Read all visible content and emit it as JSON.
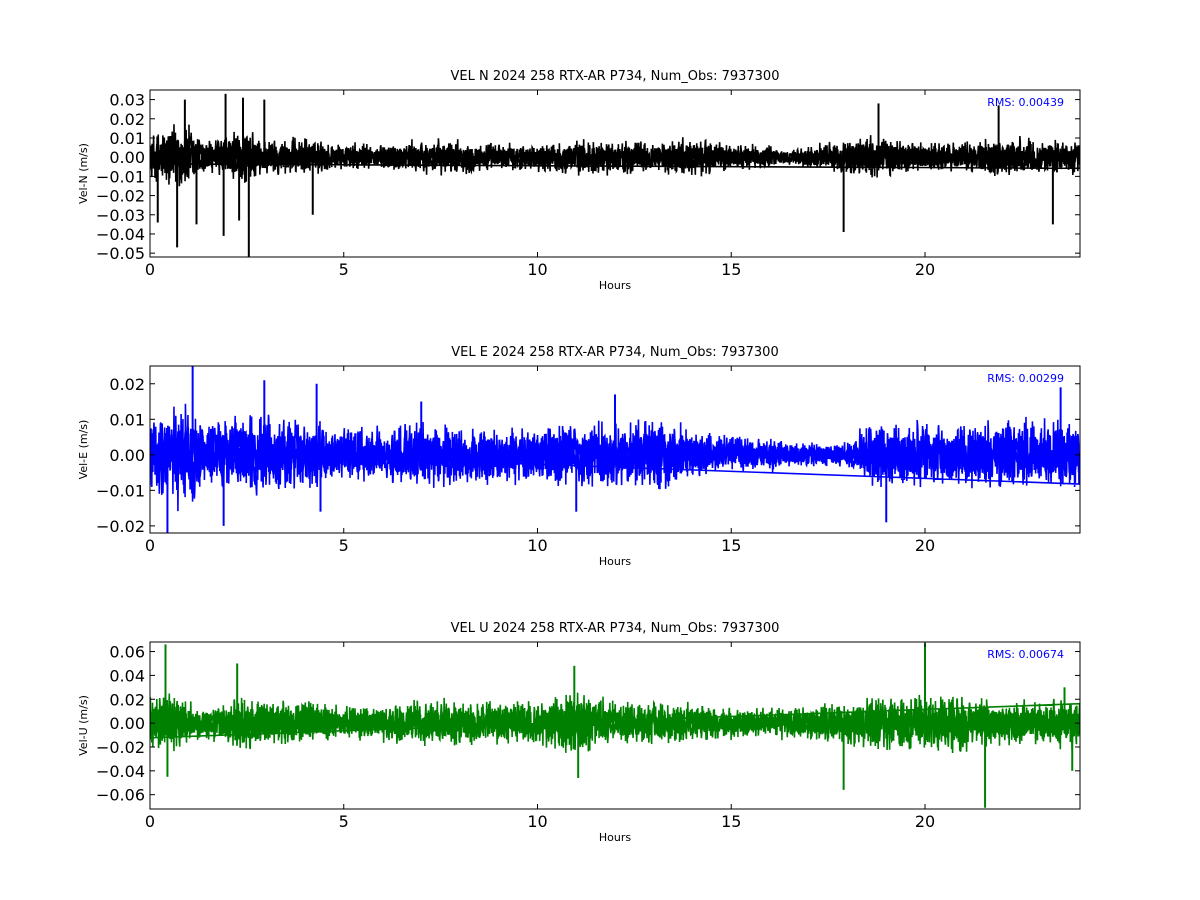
{
  "chart_data": [
    {
      "type": "line",
      "title": "VEL N 2024 258 RTX-AR  P734, Num_Obs: 7937300",
      "xlabel": "Hours",
      "ylabel": "Vel-N (m/s)",
      "xlim": [
        0,
        24
      ],
      "ylim": [
        -0.052,
        0.035
      ],
      "x_ticks": [
        0,
        5,
        10,
        15,
        20
      ],
      "x_tick_labels": [
        "0",
        "5",
        "10",
        "15",
        "20"
      ],
      "y_ticks": [
        0.03,
        0.02,
        0.01,
        0.0,
        -0.01,
        -0.02,
        -0.03,
        -0.04,
        -0.05
      ],
      "y_tick_labels": [
        "0.03",
        "0.02",
        "0.01",
        "0.00",
        "−0.01",
        "−0.02",
        "−0.03",
        "−0.04",
        "−0.05"
      ],
      "series_color": "#000000",
      "annotation": "RMS:  0.00439",
      "annotation_color": "#0000ff",
      "envelope": {
        "x": [
          0,
          0.5,
          1.0,
          1.5,
          2.0,
          2.5,
          3.0,
          4.0,
          5.0,
          6.0,
          7.0,
          8.0,
          9.0,
          10.0,
          11.0,
          12.0,
          13.0,
          14.0,
          14.5,
          15.0,
          16.0,
          16.5,
          17.0,
          18.0,
          18.5,
          19.0,
          20.0,
          21.0,
          22.0,
          23.0,
          24.0
        ],
        "half_amplitude": [
          0.012,
          0.02,
          0.02,
          0.01,
          0.014,
          0.016,
          0.011,
          0.011,
          0.008,
          0.008,
          0.01,
          0.01,
          0.008,
          0.008,
          0.01,
          0.01,
          0.009,
          0.012,
          0.01,
          0.008,
          0.007,
          0.004,
          0.007,
          0.01,
          0.014,
          0.011,
          0.009,
          0.009,
          0.012,
          0.01,
          0.01
        ]
      },
      "spikes": [
        {
          "x": 0.2,
          "y": -0.034
        },
        {
          "x": 0.7,
          "y": -0.047
        },
        {
          "x": 0.9,
          "y": 0.03
        },
        {
          "x": 1.2,
          "y": -0.035
        },
        {
          "x": 1.9,
          "y": -0.041
        },
        {
          "x": 1.95,
          "y": 0.033
        },
        {
          "x": 2.3,
          "y": -0.033
        },
        {
          "x": 2.55,
          "y": -0.052
        },
        {
          "x": 2.4,
          "y": 0.031
        },
        {
          "x": 2.95,
          "y": 0.03
        },
        {
          "x": 4.2,
          "y": -0.03
        },
        {
          "x": 17.9,
          "y": -0.039
        },
        {
          "x": 18.8,
          "y": 0.028
        },
        {
          "x": 23.3,
          "y": -0.035
        },
        {
          "x": 21.9,
          "y": 0.027
        }
      ]
    },
    {
      "type": "line",
      "title": "VEL E 2024 258 RTX-AR  P734, Num_Obs: 7937300",
      "xlabel": "Hours",
      "ylabel": "Vel-E (m/s)",
      "xlim": [
        0,
        24
      ],
      "ylim": [
        -0.022,
        0.025
      ],
      "x_ticks": [
        0,
        5,
        10,
        15,
        20
      ],
      "x_tick_labels": [
        "0",
        "5",
        "10",
        "15",
        "20"
      ],
      "y_ticks": [
        0.02,
        0.01,
        0.0,
        -0.01,
        -0.02
      ],
      "y_tick_labels": [
        "0.02",
        "0.01",
        "0.00",
        "−0.01",
        "−0.02"
      ],
      "series_color": "#0000ff",
      "annotation": "RMS:  0.00299",
      "annotation_color": "#0000ff",
      "envelope": {
        "x": [
          0,
          0.5,
          1.0,
          1.5,
          2.0,
          2.5,
          3.0,
          4.0,
          5.0,
          6.0,
          7.0,
          8.0,
          9.0,
          10.0,
          11.0,
          12.0,
          13.0,
          14.0,
          14.5,
          15.0,
          16.0,
          16.5,
          17.0,
          17.5,
          18.0,
          18.5,
          19.0,
          20.0,
          21.0,
          22.0,
          23.0,
          24.0
        ],
        "half_amplitude": [
          0.012,
          0.016,
          0.016,
          0.01,
          0.011,
          0.013,
          0.012,
          0.011,
          0.009,
          0.009,
          0.01,
          0.01,
          0.009,
          0.009,
          0.01,
          0.011,
          0.011,
          0.009,
          0.006,
          0.006,
          0.006,
          0.004,
          0.004,
          0.004,
          0.004,
          0.01,
          0.01,
          0.01,
          0.011,
          0.011,
          0.011,
          0.011
        ]
      },
      "spikes": [
        {
          "x": 0.45,
          "y": -0.022
        },
        {
          "x": 1.1,
          "y": 0.025
        },
        {
          "x": 1.9,
          "y": -0.02
        },
        {
          "x": 2.95,
          "y": 0.021
        },
        {
          "x": 4.3,
          "y": 0.02
        },
        {
          "x": 4.4,
          "y": -0.016
        },
        {
          "x": 7.0,
          "y": 0.015
        },
        {
          "x": 11.0,
          "y": -0.016
        },
        {
          "x": 12.0,
          "y": 0.017
        },
        {
          "x": 19.0,
          "y": -0.019
        },
        {
          "x": 23.5,
          "y": 0.019
        }
      ]
    },
    {
      "type": "line",
      "title": "VEL U 2024 258 RTX-AR  P734, Num_Obs: 7937300",
      "xlabel": "Hours",
      "ylabel": "Vel-U (m/s)",
      "xlim": [
        0,
        24
      ],
      "ylim": [
        -0.072,
        0.068
      ],
      "x_ticks": [
        0,
        5,
        10,
        15,
        20
      ],
      "x_tick_labels": [
        "0",
        "5",
        "10",
        "15",
        "20"
      ],
      "y_ticks": [
        0.06,
        0.04,
        0.02,
        0.0,
        -0.02,
        -0.04,
        -0.06
      ],
      "y_tick_labels": [
        "0.06",
        "0.04",
        "0.02",
        "0.00",
        "−0.02",
        "−0.04",
        "−0.06"
      ],
      "series_color": "#008000",
      "annotation": "RMS:  0.00674",
      "annotation_color": "#0000ff",
      "envelope": {
        "x": [
          0,
          0.5,
          1.0,
          1.5,
          2.0,
          2.5,
          3.0,
          4.0,
          5.0,
          6.0,
          7.0,
          8.0,
          9.0,
          10.0,
          11.0,
          11.5,
          12.0,
          13.0,
          14.0,
          15.0,
          16.0,
          17.0,
          18.0,
          19.0,
          20.0,
          21.0,
          22.0,
          23.0,
          24.0
        ],
        "half_amplitude": [
          0.025,
          0.03,
          0.022,
          0.015,
          0.022,
          0.025,
          0.022,
          0.02,
          0.015,
          0.018,
          0.022,
          0.022,
          0.02,
          0.02,
          0.03,
          0.025,
          0.02,
          0.02,
          0.02,
          0.015,
          0.014,
          0.018,
          0.02,
          0.025,
          0.025,
          0.028,
          0.02,
          0.022,
          0.025
        ]
      },
      "spikes": [
        {
          "x": 0.4,
          "y": 0.066
        },
        {
          "x": 0.45,
          "y": -0.045
        },
        {
          "x": 2.25,
          "y": 0.05
        },
        {
          "x": 10.95,
          "y": 0.048
        },
        {
          "x": 11.05,
          "y": -0.046
        },
        {
          "x": 17.9,
          "y": -0.056
        },
        {
          "x": 20.0,
          "y": 0.067
        },
        {
          "x": 21.55,
          "y": -0.071
        },
        {
          "x": 23.6,
          "y": 0.03
        },
        {
          "x": 23.8,
          "y": -0.04
        }
      ]
    }
  ]
}
